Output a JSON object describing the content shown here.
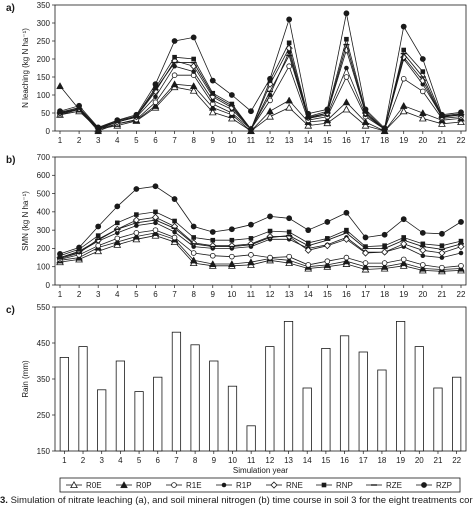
{
  "caption": {
    "figure_number": "3.",
    "text": " Simulation of nitrate leaching (a), and soil mineral nitrogen (b) time course in soil 3 for the eight treatments cor"
  },
  "chart_data": [
    {
      "panel": "a)",
      "type": "line",
      "ylabel": "N leaching (kg N ha⁻¹)",
      "ylim": [
        0,
        350
      ],
      "yticks": [
        0,
        50,
        100,
        150,
        200,
        250,
        300,
        350
      ],
      "x": [
        1,
        2,
        3,
        4,
        5,
        6,
        7,
        8,
        9,
        10,
        11,
        12,
        13,
        14,
        15,
        16,
        17,
        18,
        19,
        20,
        21,
        22
      ],
      "xticks": [
        1,
        2,
        3,
        4,
        5,
        6,
        7,
        8,
        9,
        10,
        11,
        12,
        13,
        14,
        15,
        16,
        17,
        18,
        19,
        20,
        21,
        22
      ],
      "series": [
        {
          "name": "R0E",
          "marker": "triangle-open",
          "values": [
            45,
            55,
            5,
            15,
            28,
            65,
            122,
            112,
            52,
            35,
            0,
            40,
            65,
            15,
            22,
            60,
            15,
            0,
            55,
            35,
            20,
            25
          ]
        },
        {
          "name": "R0P",
          "marker": "triangle-filled",
          "values": [
            125,
            60,
            0,
            20,
            30,
            70,
            130,
            125,
            65,
            45,
            0,
            55,
            85,
            25,
            30,
            80,
            25,
            0,
            70,
            50,
            30,
            35
          ]
        },
        {
          "name": "R1E",
          "marker": "circle-open",
          "values": [
            45,
            60,
            5,
            20,
            32,
            80,
            155,
            155,
            75,
            50,
            5,
            85,
            180,
            30,
            40,
            150,
            40,
            5,
            145,
            110,
            35,
            40
          ]
        },
        {
          "name": "R1P",
          "marker": "circle-filled",
          "values": [
            48,
            60,
            5,
            25,
            38,
            95,
            180,
            165,
            85,
            60,
            5,
            100,
            220,
            35,
            45,
            175,
            45,
            5,
            200,
            130,
            40,
            45
          ]
        },
        {
          "name": "RNE",
          "marker": "diamond-open",
          "values": [
            50,
            62,
            8,
            25,
            40,
            110,
            195,
            180,
            95,
            65,
            5,
            130,
            230,
            38,
            50,
            225,
            50,
            5,
            205,
            140,
            38,
            45
          ]
        },
        {
          "name": "RNP",
          "marker": "square-filled",
          "values": [
            52,
            65,
            8,
            28,
            42,
            120,
            205,
            200,
            105,
            75,
            5,
            140,
            245,
            40,
            55,
            255,
            55,
            5,
            225,
            165,
            42,
            48
          ]
        },
        {
          "name": "RZE",
          "marker": "dash",
          "values": [
            50,
            62,
            8,
            25,
            40,
            115,
            190,
            190,
            100,
            70,
            5,
            110,
            210,
            35,
            50,
            240,
            50,
            5,
            215,
            150,
            40,
            45
          ]
        },
        {
          "name": "RZP",
          "marker": "circle-filled-large",
          "values": [
            55,
            70,
            10,
            30,
            45,
            130,
            250,
            260,
            140,
            100,
            55,
            145,
            310,
            48,
            60,
            327,
            60,
            8,
            290,
            200,
            45,
            52
          ]
        }
      ]
    },
    {
      "panel": "b)",
      "type": "line",
      "ylabel": "SMN (kg N ha⁻¹)",
      "ylim": [
        0,
        700
      ],
      "yticks": [
        0,
        100,
        200,
        300,
        400,
        500,
        600,
        700
      ],
      "x": [
        1,
        2,
        3,
        4,
        5,
        6,
        7,
        8,
        9,
        10,
        11,
        12,
        13,
        14,
        15,
        16,
        17,
        18,
        19,
        20,
        21,
        22
      ],
      "xticks": [
        1,
        2,
        3,
        4,
        5,
        6,
        7,
        8,
        9,
        10,
        11,
        12,
        13,
        14,
        15,
        16,
        17,
        18,
        19,
        20,
        21,
        22
      ],
      "series": [
        {
          "name": "R0E",
          "marker": "triangle-open",
          "values": [
            125,
            140,
            185,
            220,
            250,
            270,
            235,
            120,
            105,
            105,
            110,
            135,
            120,
            90,
            100,
            115,
            85,
            90,
            105,
            80,
            75,
            80
          ]
        },
        {
          "name": "R0P",
          "marker": "triangle-filled",
          "values": [
            135,
            150,
            205,
            235,
            265,
            285,
            250,
            135,
            115,
            115,
            125,
            145,
            135,
            100,
            110,
            130,
            100,
            100,
            120,
            90,
            85,
            90
          ]
        },
        {
          "name": "R1E",
          "marker": "circle-open",
          "values": [
            140,
            165,
            215,
            255,
            285,
            300,
            260,
            175,
            160,
            155,
            165,
            150,
            155,
            110,
            130,
            150,
            120,
            120,
            140,
            110,
            95,
            105
          ]
        },
        {
          "name": "R1P",
          "marker": "circle-filled",
          "values": [
            150,
            180,
            240,
            285,
            325,
            340,
            290,
            210,
            200,
            200,
            210,
            250,
            250,
            200,
            220,
            260,
            180,
            180,
            210,
            160,
            150,
            175
          ]
        },
        {
          "name": "RNE",
          "marker": "diamond-open",
          "values": [
            150,
            185,
            245,
            305,
            355,
            370,
            320,
            230,
            215,
            215,
            225,
            265,
            265,
            190,
            215,
            250,
            175,
            180,
            225,
            190,
            175,
            210
          ]
        },
        {
          "name": "RNP",
          "marker": "square-filled",
          "values": [
            160,
            195,
            270,
            340,
            385,
            400,
            350,
            260,
            245,
            245,
            255,
            295,
            290,
            230,
            255,
            300,
            210,
            215,
            260,
            225,
            215,
            240
          ]
        },
        {
          "name": "RZE",
          "marker": "dash",
          "values": [
            145,
            175,
            250,
            305,
            340,
            355,
            310,
            225,
            210,
            210,
            220,
            260,
            270,
            215,
            245,
            285,
            200,
            200,
            245,
            210,
            195,
            225
          ]
        },
        {
          "name": "RZP",
          "marker": "circle-filled-large",
          "values": [
            170,
            205,
            320,
            430,
            525,
            540,
            470,
            320,
            290,
            305,
            330,
            375,
            365,
            300,
            345,
            395,
            260,
            275,
            360,
            285,
            280,
            345
          ]
        }
      ]
    },
    {
      "panel": "c)",
      "type": "bar",
      "ylabel": "Rain (mm)",
      "xlabel": "Simulation year",
      "ylim": [
        150,
        550
      ],
      "yticks": [
        150,
        250,
        350,
        450,
        550
      ],
      "categories": [
        "1",
        "2",
        "3",
        "4",
        "5",
        "6",
        "7",
        "8",
        "9",
        "10",
        "11",
        "12",
        "13",
        "14",
        "15",
        "16",
        "17",
        "18",
        "19",
        "20",
        "21",
        "22"
      ],
      "values": [
        410,
        440,
        320,
        400,
        315,
        355,
        480,
        445,
        400,
        330,
        220,
        440,
        510,
        325,
        435,
        470,
        425,
        375,
        510,
        440,
        325,
        355
      ]
    }
  ],
  "legend": {
    "entries": [
      {
        "name": "R0E",
        "marker": "triangle-open"
      },
      {
        "name": "R0P",
        "marker": "triangle-filled"
      },
      {
        "name": "R1E",
        "marker": "circle-open"
      },
      {
        "name": "R1P",
        "marker": "circle-filled"
      },
      {
        "name": "RNE",
        "marker": "diamond-open"
      },
      {
        "name": "RNP",
        "marker": "square-filled"
      },
      {
        "name": "RZE",
        "marker": "dash"
      },
      {
        "name": "RZP",
        "marker": "circle-filled-large"
      }
    ]
  },
  "colors": {
    "ink": "#1a1a1a",
    "background": "#ffffff"
  }
}
